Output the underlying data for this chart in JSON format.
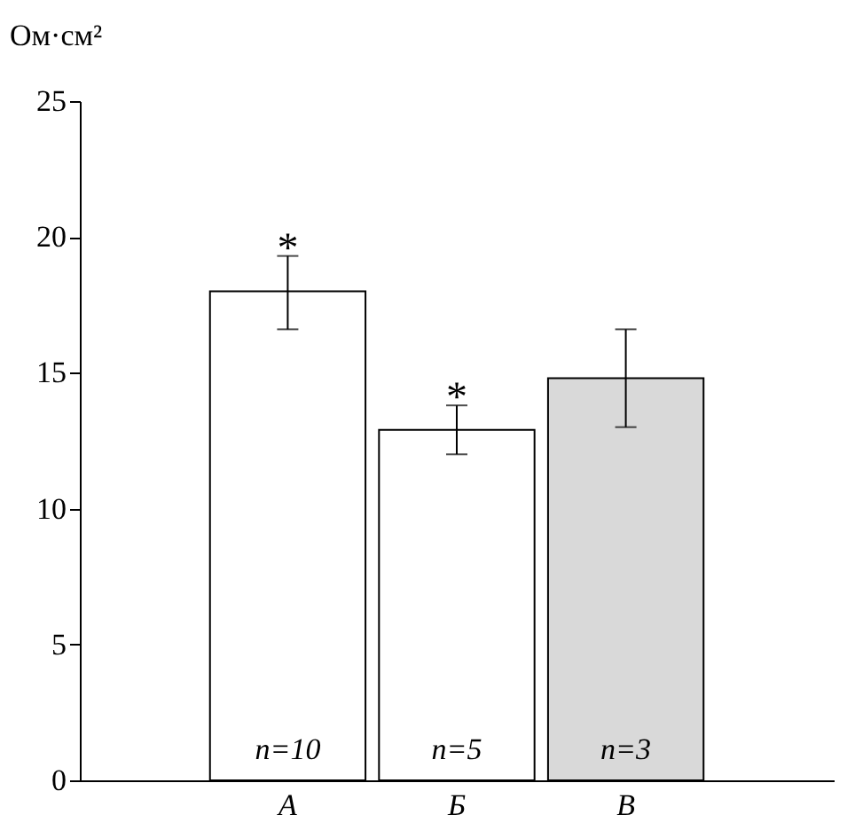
{
  "chart_data": {
    "type": "bar",
    "ylabel": "Ом·см²",
    "categories": [
      "А",
      "Б",
      "В"
    ],
    "values": [
      18,
      12.9,
      14.8
    ],
    "colors": [
      "#ffffff",
      "#ffffff",
      "#d9d9d9"
    ],
    "errors": [
      [
        16.6,
        19.3
      ],
      [
        12.0,
        13.8
      ],
      [
        13.0,
        16.6
      ]
    ],
    "ylim": [
      0,
      25
    ],
    "yticks": [
      0,
      5,
      10,
      15,
      20,
      25
    ],
    "grid": false,
    "annotations": [
      "*",
      "*",
      "n=10",
      "n=5",
      "n=3"
    ]
  }
}
